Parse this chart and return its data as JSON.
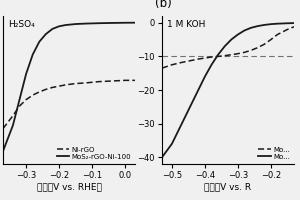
{
  "panel_a": {
    "label": "H₂SO₄",
    "xlim": [
      -0.37,
      0.03
    ],
    "ylim": [
      -22,
      1
    ],
    "xticks": [
      -0.3,
      -0.2,
      -0.1,
      0.0
    ],
    "yticks": [],
    "xlabel": "电位（V vs. RHE）",
    "solid_line": {
      "x": [
        -0.37,
        -0.34,
        -0.32,
        -0.3,
        -0.28,
        -0.26,
        -0.24,
        -0.22,
        -0.2,
        -0.18,
        -0.15,
        -0.12,
        -0.08,
        -0.04,
        0.0,
        0.03
      ],
      "y": [
        -20.0,
        -16.0,
        -12.0,
        -8.0,
        -5.0,
        -3.0,
        -1.8,
        -1.0,
        -0.6,
        -0.4,
        -0.25,
        -0.18,
        -0.12,
        -0.08,
        -0.05,
        -0.04
      ]
    },
    "dashed_line": {
      "x": [
        -0.37,
        -0.34,
        -0.32,
        -0.3,
        -0.28,
        -0.26,
        -0.24,
        -0.22,
        -0.2,
        -0.18,
        -0.15,
        -0.12,
        -0.08,
        -0.04,
        0.0,
        0.03
      ],
      "y": [
        -16.5,
        -14.5,
        -13.0,
        -12.0,
        -11.3,
        -10.8,
        -10.4,
        -10.1,
        -9.9,
        -9.7,
        -9.5,
        -9.4,
        -9.2,
        -9.1,
        -9.0,
        -9.0
      ]
    },
    "legend_dashed": "Ni-rGO",
    "legend_solid": "MoS₂-rGO-Ni-100"
  },
  "panel_b": {
    "label": "1 M KOH",
    "panel_label": "(b)",
    "xlim": [
      -0.53,
      -0.13
    ],
    "ylim": [
      -42,
      2
    ],
    "xticks": [
      -0.5,
      -0.4,
      -0.3,
      -0.2
    ],
    "yticks": [
      0,
      -10,
      -20,
      -30,
      -40
    ],
    "xlabel": "电位（V vs. R",
    "hline_y": -10,
    "solid_line": {
      "x": [
        -0.53,
        -0.5,
        -0.47,
        -0.44,
        -0.42,
        -0.4,
        -0.38,
        -0.36,
        -0.34,
        -0.32,
        -0.3,
        -0.28,
        -0.26,
        -0.24,
        -0.22,
        -0.2,
        -0.18,
        -0.15,
        -0.13
      ],
      "y": [
        -40.0,
        -36.0,
        -30.0,
        -24.0,
        -20.0,
        -16.0,
        -12.5,
        -9.5,
        -7.0,
        -5.0,
        -3.5,
        -2.3,
        -1.5,
        -1.0,
        -0.65,
        -0.42,
        -0.28,
        -0.16,
        -0.1
      ]
    },
    "dashed_line": {
      "x": [
        -0.53,
        -0.5,
        -0.47,
        -0.44,
        -0.42,
        -0.4,
        -0.38,
        -0.36,
        -0.34,
        -0.32,
        -0.3,
        -0.28,
        -0.26,
        -0.24,
        -0.22,
        -0.2,
        -0.18,
        -0.15,
        -0.13
      ],
      "y": [
        -13.5,
        -12.5,
        -11.8,
        -11.2,
        -10.8,
        -10.5,
        -10.2,
        -10.0,
        -9.8,
        -9.5,
        -9.2,
        -8.8,
        -8.2,
        -7.4,
        -6.4,
        -5.0,
        -3.5,
        -2.0,
        -1.2
      ]
    },
    "legend_dashed": "Mo...",
    "legend_solid": "Mo..."
  },
  "line_color": "#1a1a1a",
  "bg_color": "#f0f0f0",
  "font_size": 6.5
}
